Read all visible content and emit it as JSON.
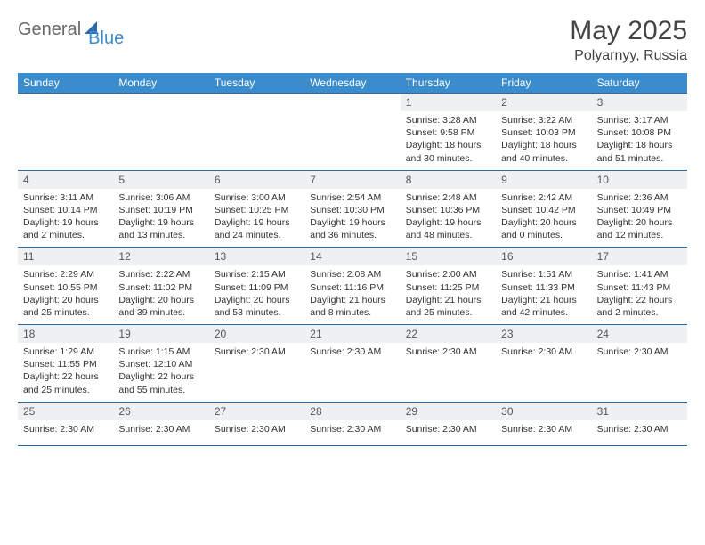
{
  "logo": {
    "general": "General",
    "blue": "Blue"
  },
  "title": "May 2025",
  "location": "Polyarnyy, Russia",
  "colors": {
    "header_bg": "#3a8ccc",
    "rule": "#2b6aa8",
    "daynum_bg": "#eef0f2",
    "text": "#333333",
    "logo_gray": "#6a6a6a",
    "logo_blue": "#3a8ccc"
  },
  "dayHeaders": [
    "Sunday",
    "Monday",
    "Tuesday",
    "Wednesday",
    "Thursday",
    "Friday",
    "Saturday"
  ],
  "weeks": [
    [
      null,
      null,
      null,
      null,
      {
        "n": "1",
        "sr": "Sunrise: 3:28 AM",
        "ss": "Sunset: 9:58 PM",
        "dl": "Daylight: 18 hours and 30 minutes."
      },
      {
        "n": "2",
        "sr": "Sunrise: 3:22 AM",
        "ss": "Sunset: 10:03 PM",
        "dl": "Daylight: 18 hours and 40 minutes."
      },
      {
        "n": "3",
        "sr": "Sunrise: 3:17 AM",
        "ss": "Sunset: 10:08 PM",
        "dl": "Daylight: 18 hours and 51 minutes."
      }
    ],
    [
      {
        "n": "4",
        "sr": "Sunrise: 3:11 AM",
        "ss": "Sunset: 10:14 PM",
        "dl": "Daylight: 19 hours and 2 minutes."
      },
      {
        "n": "5",
        "sr": "Sunrise: 3:06 AM",
        "ss": "Sunset: 10:19 PM",
        "dl": "Daylight: 19 hours and 13 minutes."
      },
      {
        "n": "6",
        "sr": "Sunrise: 3:00 AM",
        "ss": "Sunset: 10:25 PM",
        "dl": "Daylight: 19 hours and 24 minutes."
      },
      {
        "n": "7",
        "sr": "Sunrise: 2:54 AM",
        "ss": "Sunset: 10:30 PM",
        "dl": "Daylight: 19 hours and 36 minutes."
      },
      {
        "n": "8",
        "sr": "Sunrise: 2:48 AM",
        "ss": "Sunset: 10:36 PM",
        "dl": "Daylight: 19 hours and 48 minutes."
      },
      {
        "n": "9",
        "sr": "Sunrise: 2:42 AM",
        "ss": "Sunset: 10:42 PM",
        "dl": "Daylight: 20 hours and 0 minutes."
      },
      {
        "n": "10",
        "sr": "Sunrise: 2:36 AM",
        "ss": "Sunset: 10:49 PM",
        "dl": "Daylight: 20 hours and 12 minutes."
      }
    ],
    [
      {
        "n": "11",
        "sr": "Sunrise: 2:29 AM",
        "ss": "Sunset: 10:55 PM",
        "dl": "Daylight: 20 hours and 25 minutes."
      },
      {
        "n": "12",
        "sr": "Sunrise: 2:22 AM",
        "ss": "Sunset: 11:02 PM",
        "dl": "Daylight: 20 hours and 39 minutes."
      },
      {
        "n": "13",
        "sr": "Sunrise: 2:15 AM",
        "ss": "Sunset: 11:09 PM",
        "dl": "Daylight: 20 hours and 53 minutes."
      },
      {
        "n": "14",
        "sr": "Sunrise: 2:08 AM",
        "ss": "Sunset: 11:16 PM",
        "dl": "Daylight: 21 hours and 8 minutes."
      },
      {
        "n": "15",
        "sr": "Sunrise: 2:00 AM",
        "ss": "Sunset: 11:25 PM",
        "dl": "Daylight: 21 hours and 25 minutes."
      },
      {
        "n": "16",
        "sr": "Sunrise: 1:51 AM",
        "ss": "Sunset: 11:33 PM",
        "dl": "Daylight: 21 hours and 42 minutes."
      },
      {
        "n": "17",
        "sr": "Sunrise: 1:41 AM",
        "ss": "Sunset: 11:43 PM",
        "dl": "Daylight: 22 hours and 2 minutes."
      }
    ],
    [
      {
        "n": "18",
        "sr": "Sunrise: 1:29 AM",
        "ss": "Sunset: 11:55 PM",
        "dl": "Daylight: 22 hours and 25 minutes."
      },
      {
        "n": "19",
        "sr": "Sunrise: 1:15 AM",
        "ss": "Sunset: 12:10 AM",
        "dl": "Daylight: 22 hours and 55 minutes."
      },
      {
        "n": "20",
        "sr": "Sunrise: 2:30 AM"
      },
      {
        "n": "21",
        "sr": "Sunrise: 2:30 AM"
      },
      {
        "n": "22",
        "sr": "Sunrise: 2:30 AM"
      },
      {
        "n": "23",
        "sr": "Sunrise: 2:30 AM"
      },
      {
        "n": "24",
        "sr": "Sunrise: 2:30 AM"
      }
    ],
    [
      {
        "n": "25",
        "sr": "Sunrise: 2:30 AM"
      },
      {
        "n": "26",
        "sr": "Sunrise: 2:30 AM"
      },
      {
        "n": "27",
        "sr": "Sunrise: 2:30 AM"
      },
      {
        "n": "28",
        "sr": "Sunrise: 2:30 AM"
      },
      {
        "n": "29",
        "sr": "Sunrise: 2:30 AM"
      },
      {
        "n": "30",
        "sr": "Sunrise: 2:30 AM"
      },
      {
        "n": "31",
        "sr": "Sunrise: 2:30 AM"
      }
    ]
  ]
}
